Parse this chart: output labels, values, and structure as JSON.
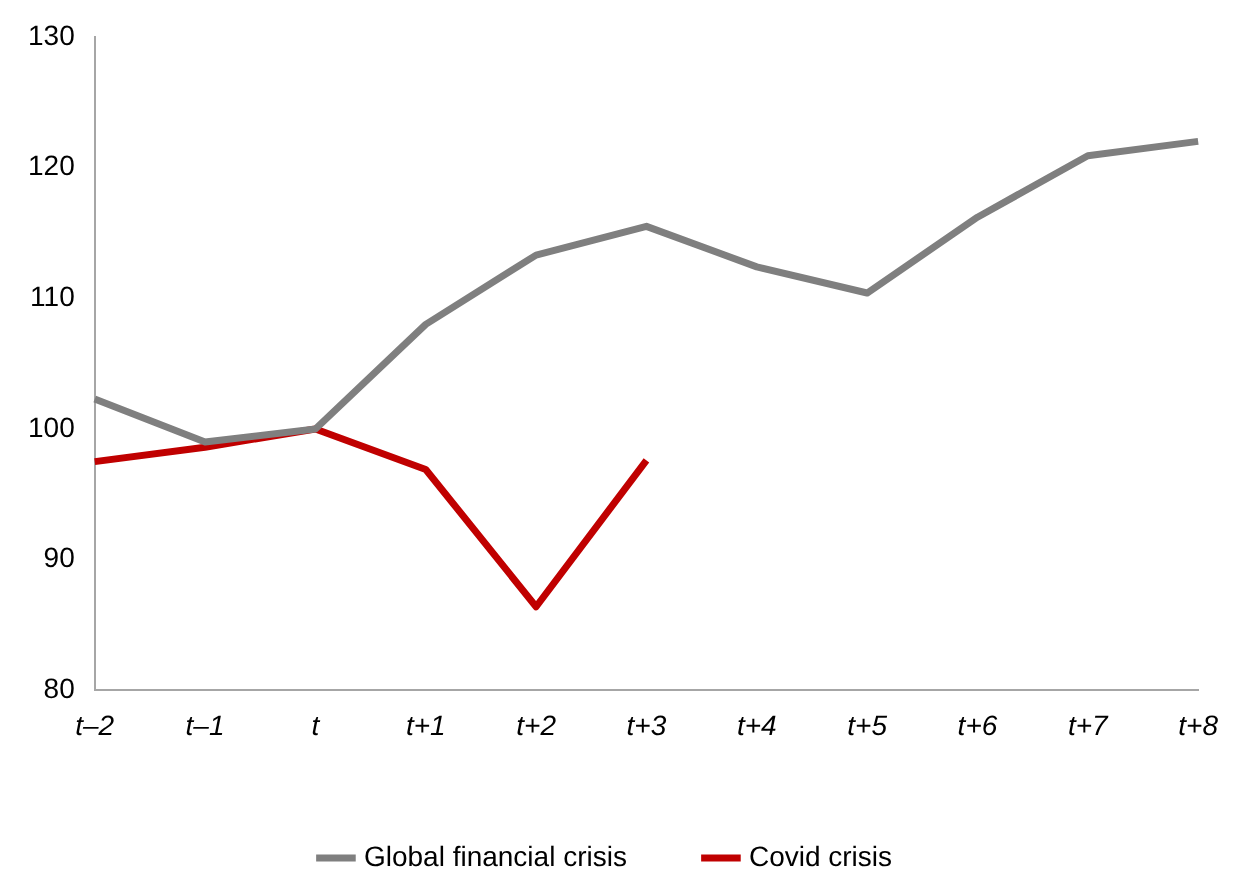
{
  "chart_data": {
    "type": "line",
    "categories": [
      "t–2",
      "t–1",
      "t",
      "t+1",
      "t+2",
      "t+3",
      "t+4",
      "t+5",
      "t+6",
      "t+7",
      "t+8"
    ],
    "series": [
      {
        "name": "Global financial crisis",
        "color": "#7f7f7f",
        "values": [
          102.3,
          99.0,
          100,
          108.0,
          113.3,
          115.5,
          112.4,
          110.4,
          116.2,
          120.9,
          122.0
        ]
      },
      {
        "name": "Covid crisis",
        "color": "#c00000",
        "values": [
          97.5,
          98.6,
          100,
          96.9,
          86.4,
          97.6,
          null,
          null,
          null,
          null,
          null
        ]
      }
    ],
    "ylim": [
      80,
      130
    ],
    "yticks": [
      80,
      90,
      100,
      110,
      120,
      130
    ],
    "grid": false,
    "legend": "bottom",
    "marker": "none",
    "line_style": "solid"
  }
}
